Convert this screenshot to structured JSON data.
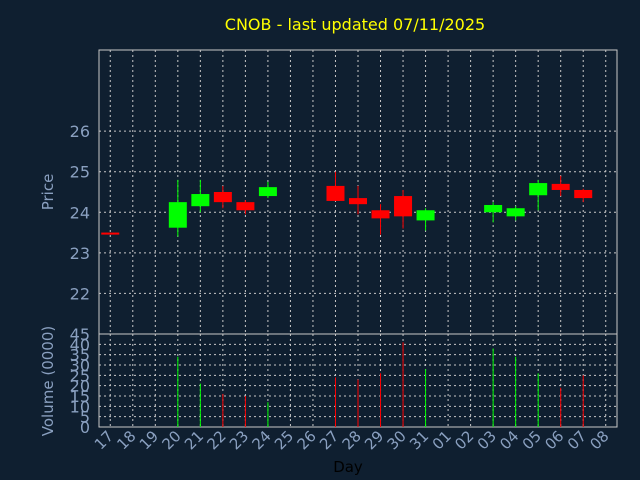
{
  "chart_data": {
    "type": "candlestick",
    "title": "CNOB - last updated 07/11/2025",
    "xlabel": "Day",
    "price_panel": {
      "ylabel": "Price",
      "yticks": [
        "22",
        "23",
        "24",
        "25",
        "26"
      ],
      "ylim": [
        21.0,
        28.0
      ]
    },
    "volume_panel": {
      "ylabel": "Volume (0000)",
      "yticks": [
        "0",
        "5",
        "10",
        "15",
        "20",
        "25",
        "30",
        "35",
        "40",
        "45"
      ],
      "ylim": [
        0,
        45
      ]
    },
    "x_ticks": [
      "17",
      "18",
      "19",
      "20",
      "21",
      "22",
      "23",
      "24",
      "25",
      "26",
      "27",
      "28",
      "29",
      "30",
      "31",
      "01",
      "02",
      "03",
      "04",
      "05",
      "06",
      "07",
      "08"
    ],
    "candles": [
      {
        "day": "17",
        "open": 23.5,
        "high": 23.5,
        "low": 23.45,
        "close": 23.45,
        "volume": 0
      },
      {
        "day": "20",
        "open": 23.62,
        "high": 24.8,
        "low": 23.4,
        "close": 24.25,
        "volume": 34
      },
      {
        "day": "21",
        "open": 24.15,
        "high": 24.8,
        "low": 24.0,
        "close": 24.45,
        "volume": 21
      },
      {
        "day": "22",
        "open": 24.5,
        "high": 24.65,
        "low": 24.1,
        "close": 24.25,
        "volume": 16
      },
      {
        "day": "23",
        "open": 24.25,
        "high": 24.3,
        "low": 23.95,
        "close": 24.05,
        "volume": 15
      },
      {
        "day": "24",
        "open": 24.4,
        "high": 24.75,
        "low": 24.35,
        "close": 24.62,
        "volume": 12
      },
      {
        "day": "27",
        "open": 24.65,
        "high": 25.0,
        "low": 24.28,
        "close": 24.28,
        "volume": 24
      },
      {
        "day": "28",
        "open": 24.35,
        "high": 24.65,
        "low": 23.95,
        "close": 24.2,
        "volume": 23
      },
      {
        "day": "29",
        "open": 24.05,
        "high": 24.2,
        "low": 23.45,
        "close": 23.85,
        "volume": 26
      },
      {
        "day": "30",
        "open": 24.4,
        "high": 24.55,
        "low": 23.6,
        "close": 23.9,
        "volume": 41
      },
      {
        "day": "31",
        "open": 23.8,
        "high": 24.1,
        "low": 23.55,
        "close": 24.05,
        "volume": 28
      },
      {
        "day": "03",
        "open": 24.0,
        "high": 24.25,
        "low": 23.75,
        "close": 24.18,
        "volume": 38
      },
      {
        "day": "04",
        "open": 23.9,
        "high": 24.15,
        "low": 23.8,
        "close": 24.1,
        "volume": 34
      },
      {
        "day": "05",
        "open": 24.42,
        "high": 24.8,
        "low": 24.05,
        "close": 24.72,
        "volume": 26
      },
      {
        "day": "06",
        "open": 24.7,
        "high": 24.9,
        "low": 24.4,
        "close": 24.55,
        "volume": 19
      },
      {
        "day": "07",
        "open": 24.55,
        "high": 24.58,
        "low": 24.25,
        "close": 24.35,
        "volume": 25
      }
    ],
    "colors": {
      "background": "#0f1f30",
      "title": "#ffff00",
      "axis_text": "#8aa0c0",
      "grid": "#c8c8c8",
      "up": "#00ff00",
      "down": "#ff0000"
    },
    "grid": true
  }
}
